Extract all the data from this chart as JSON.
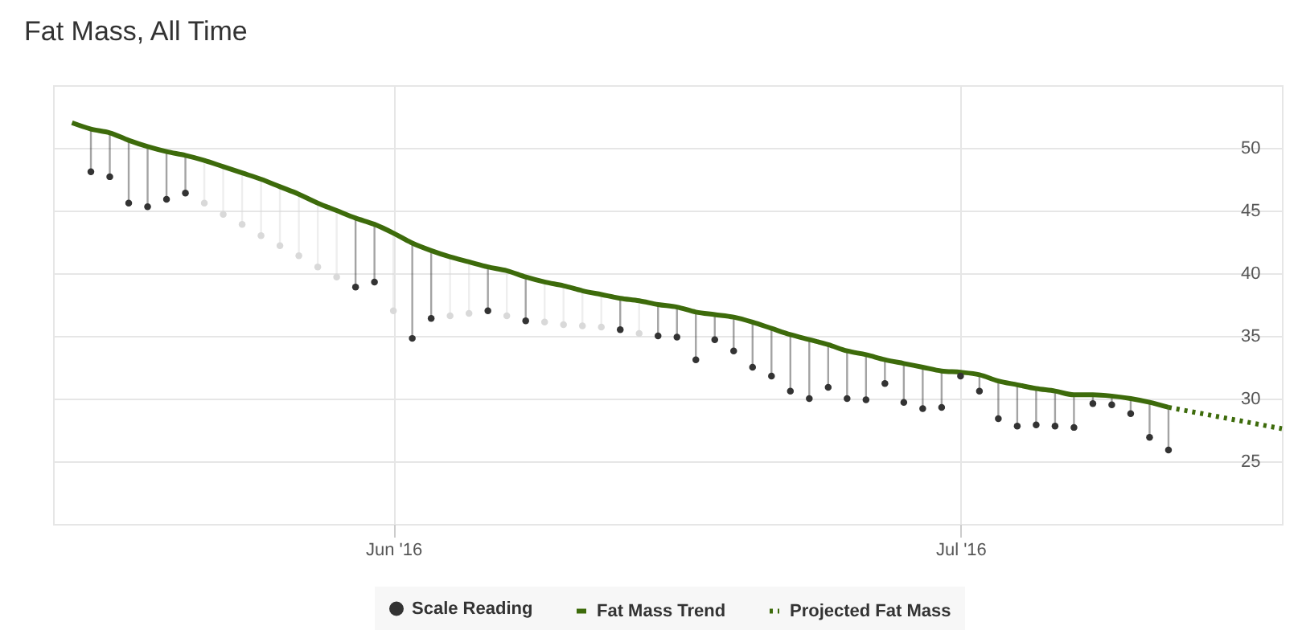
{
  "chart_data": {
    "type": "line",
    "title": "Fat Mass, All Time",
    "xlim": [
      "2016-05-14",
      "2016-07-18"
    ],
    "xticks": [
      {
        "value": "2016-06-01",
        "label": "Jun '16"
      },
      {
        "value": "2016-07-01",
        "label": "Jul '16"
      }
    ],
    "ylim": [
      20,
      55
    ],
    "yticks": [
      25,
      30,
      35,
      40,
      45,
      50
    ],
    "grid": true,
    "legend": "bottom",
    "series": [
      {
        "name": "Scale Reading",
        "type": "scatter",
        "marker": "circle",
        "color": "#333333",
        "x": [
          "2016-05-16",
          "2016-05-17",
          "2016-05-18",
          "2016-05-19",
          "2016-05-20",
          "2016-05-21",
          "2016-05-22",
          "2016-05-23",
          "2016-05-24",
          "2016-05-25",
          "2016-05-26",
          "2016-05-27",
          "2016-05-28",
          "2016-05-29",
          "2016-05-30",
          "2016-05-31",
          "2016-06-01",
          "2016-06-02",
          "2016-06-03",
          "2016-06-04",
          "2016-06-05",
          "2016-06-06",
          "2016-06-07",
          "2016-06-08",
          "2016-06-09",
          "2016-06-10",
          "2016-06-11",
          "2016-06-12",
          "2016-06-13",
          "2016-06-14",
          "2016-06-15",
          "2016-06-16",
          "2016-06-17",
          "2016-06-18",
          "2016-06-19",
          "2016-06-20",
          "2016-06-21",
          "2016-06-22",
          "2016-06-23",
          "2016-06-24",
          "2016-06-25",
          "2016-06-26",
          "2016-06-27",
          "2016-06-28",
          "2016-06-29",
          "2016-06-30",
          "2016-07-01",
          "2016-07-02",
          "2016-07-03",
          "2016-07-04",
          "2016-07-05",
          "2016-07-06",
          "2016-07-07",
          "2016-07-08",
          "2016-07-09",
          "2016-07-10",
          "2016-07-11",
          "2016-07-12"
        ],
        "values": [
          48.1,
          47.7,
          45.6,
          45.3,
          45.9,
          46.4,
          45.6,
          44.7,
          43.9,
          43.0,
          42.2,
          41.4,
          40.5,
          39.7,
          38.9,
          39.3,
          37.0,
          34.8,
          36.4,
          36.6,
          36.8,
          37.0,
          36.6,
          36.2,
          36.1,
          35.9,
          35.8,
          35.7,
          35.5,
          35.2,
          35.0,
          34.9,
          33.1,
          34.7,
          33.8,
          32.5,
          31.8,
          30.6,
          30.0,
          30.9,
          30.0,
          29.9,
          31.2,
          29.7,
          29.2,
          29.3,
          31.8,
          30.6,
          28.4,
          27.8,
          27.9,
          27.8,
          27.7,
          29.6,
          29.5,
          28.8,
          26.9,
          25.9
        ],
        "colors": [
          "#333333",
          "#333333",
          "#333333",
          "#333333",
          "#333333",
          "#333333",
          "#d9d9d9",
          "#d9d9d9",
          "#d9d9d9",
          "#d9d9d9",
          "#d9d9d9",
          "#d9d9d9",
          "#d9d9d9",
          "#d9d9d9",
          "#333333",
          "#333333",
          "#d9d9d9",
          "#333333",
          "#333333",
          "#d9d9d9",
          "#d9d9d9",
          "#333333",
          "#d9d9d9",
          "#333333",
          "#d9d9d9",
          "#d9d9d9",
          "#d9d9d9",
          "#d9d9d9",
          "#333333",
          "#d9d9d9",
          "#333333",
          "#333333",
          "#333333",
          "#333333",
          "#333333",
          "#333333",
          "#333333",
          "#333333",
          "#333333",
          "#333333",
          "#333333",
          "#333333",
          "#333333",
          "#333333",
          "#333333",
          "#333333",
          "#333333",
          "#333333",
          "#333333",
          "#333333",
          "#333333",
          "#333333",
          "#333333",
          "#333333",
          "#333333",
          "#333333",
          "#333333",
          "#333333"
        ]
      },
      {
        "name": "Fat Mass Trend",
        "type": "line",
        "line_style": "solid",
        "color": "#3d6b0b",
        "x": [
          "2016-05-15",
          "2016-05-16",
          "2016-05-17",
          "2016-05-18",
          "2016-05-19",
          "2016-05-20",
          "2016-05-21",
          "2016-05-22",
          "2016-05-23",
          "2016-05-24",
          "2016-05-25",
          "2016-05-26",
          "2016-05-27",
          "2016-05-28",
          "2016-05-29",
          "2016-05-30",
          "2016-05-31",
          "2016-06-01",
          "2016-06-02",
          "2016-06-03",
          "2016-06-04",
          "2016-06-05",
          "2016-06-06",
          "2016-06-07",
          "2016-06-08",
          "2016-06-09",
          "2016-06-10",
          "2016-06-11",
          "2016-06-12",
          "2016-06-13",
          "2016-06-14",
          "2016-06-15",
          "2016-06-16",
          "2016-06-17",
          "2016-06-18",
          "2016-06-19",
          "2016-06-20",
          "2016-06-21",
          "2016-06-22",
          "2016-06-23",
          "2016-06-24",
          "2016-06-25",
          "2016-06-26",
          "2016-06-27",
          "2016-06-28",
          "2016-06-29",
          "2016-06-30",
          "2016-07-01",
          "2016-07-02",
          "2016-07-03",
          "2016-07-04",
          "2016-07-05",
          "2016-07-06",
          "2016-07-07",
          "2016-07-08",
          "2016-07-09",
          "2016-07-10",
          "2016-07-11",
          "2016-07-12"
        ],
        "values": [
          52.0,
          51.5,
          51.2,
          50.6,
          50.1,
          49.7,
          49.4,
          49.0,
          48.5,
          48.0,
          47.5,
          46.9,
          46.3,
          45.6,
          45.0,
          44.4,
          43.9,
          43.2,
          42.4,
          41.8,
          41.3,
          40.9,
          40.5,
          40.2,
          39.7,
          39.3,
          39.0,
          38.6,
          38.3,
          38.0,
          37.8,
          37.5,
          37.3,
          36.9,
          36.7,
          36.5,
          36.1,
          35.6,
          35.1,
          34.7,
          34.3,
          33.8,
          33.5,
          33.1,
          32.8,
          32.5,
          32.2,
          32.1,
          31.9,
          31.4,
          31.1,
          30.8,
          30.6,
          30.3,
          30.3,
          30.2,
          30.0,
          29.7,
          29.3
        ]
      },
      {
        "name": "Projected Fat Mass",
        "type": "line",
        "line_style": "dotted",
        "color": "#3d6b0b",
        "x": [
          "2016-07-12",
          "2016-07-18"
        ],
        "values": [
          29.3,
          27.6
        ]
      }
    ]
  }
}
